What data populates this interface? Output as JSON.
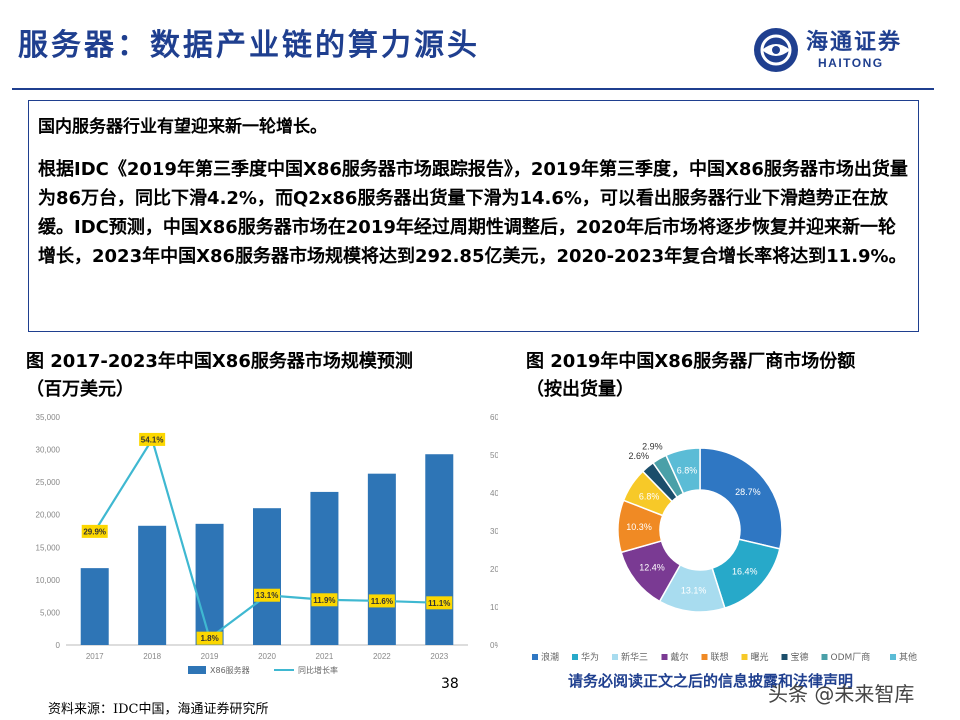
{
  "header": {
    "title": "服务器：数据产业链的算力源头",
    "logo_cn": "海通证券",
    "logo_en": "HAITONG"
  },
  "summary": {
    "heading": "国内服务器行业有望迎来新一轮增长。",
    "body": "根据IDC《2019年第三季度中国X86服务器市场跟踪报告》，2019年第三季度，中国X86服务器市场出货量为86万台，同比下滑4.2%，而Q2x86服务器出货量下滑为14.6%，可以看出服务器行业下滑趋势正在放缓。IDC预测，中国X86服务器市场在2019年经过周期性调整后，2020年后市场将逐步恢复并迎来新一轮增长，2023年中国X86服务器市场规模将达到292.85亿美元，2020-2023年复合增长率将达到11.9%。"
  },
  "figure1": {
    "title_line1": "图 2017-2023年中国X86服务器市场规模预测",
    "title_line2": "（百万美元）"
  },
  "figure2": {
    "title_line1": "图 2019年中国X86服务器厂商市场份额",
    "title_line2": "（按出货量）"
  },
  "colors": {
    "brand_blue": "#1f3f8f",
    "bar_blue": "#2e75b6",
    "line_cyan": "#3fb8d1",
    "label_yellow": "#fcd700"
  },
  "chart_data": [
    {
      "type": "bar",
      "categories": [
        "2017",
        "2018",
        "2019",
        "2020",
        "2021",
        "2022",
        "2023"
      ],
      "series": [
        {
          "name": "X86服务器",
          "axis": "left",
          "values": [
            11800,
            18300,
            18600,
            21000,
            23500,
            26300,
            29285
          ]
        },
        {
          "name": "同比增长率",
          "type": "line",
          "axis": "right",
          "values": [
            29.9,
            54.1,
            1.8,
            13.1,
            11.9,
            11.6,
            11.1
          ]
        }
      ],
      "data_labels": [
        "29.9%",
        "54.1%",
        "1.8%",
        "13.1%",
        "11.9%",
        "11.6%",
        "11.1%"
      ],
      "left_ticks": [
        "0",
        "5,000",
        "10,000",
        "15,000",
        "20,000",
        "25,000",
        "30,000",
        "35,000"
      ],
      "right_ticks": [
        "0%",
        "10%",
        "20%",
        "30%",
        "40%",
        "50%",
        "60%"
      ],
      "ylim": [
        0,
        35000
      ],
      "y2lim": [
        0,
        60
      ],
      "legend_position": "bottom",
      "grid": false
    },
    {
      "type": "pie",
      "subtype": "donut",
      "series": [
        {
          "name": "浪潮",
          "value": 28.7,
          "label": "28.7%",
          "color": "#2f77c3"
        },
        {
          "name": "华为",
          "value": 16.4,
          "label": "16.4%",
          "color": "#27a9c9"
        },
        {
          "name": "新华三",
          "value": 13.1,
          "label": "13.1%",
          "color": "#a8dcef"
        },
        {
          "name": "戴尔",
          "value": 12.4,
          "label": "12.4%",
          "color": "#7a3a93"
        },
        {
          "name": "联想",
          "value": 10.3,
          "label": "10.3%",
          "color": "#f08a24"
        },
        {
          "name": "曙光",
          "value": 6.8,
          "label": "6.8%",
          "color": "#f7c928"
        },
        {
          "name": "宝德",
          "value": 2.6,
          "label": "2.6%",
          "color": "#1b4e6b"
        },
        {
          "name": "ODM厂商",
          "value": 2.9,
          "label": "2.9%",
          "color": "#4aa0a8"
        },
        {
          "name": "其他",
          "value": 6.8,
          "label": "6.8%",
          "color": "#5bbcd6"
        }
      ],
      "legend_position": "bottom"
    }
  ],
  "footer": {
    "page_number": "38",
    "disclaimer": "请务必阅读正文之后的信息披露和法律声明",
    "source": "资料来源：IDC中国，海通证券研究所",
    "watermark": "头条 @未来智库"
  }
}
